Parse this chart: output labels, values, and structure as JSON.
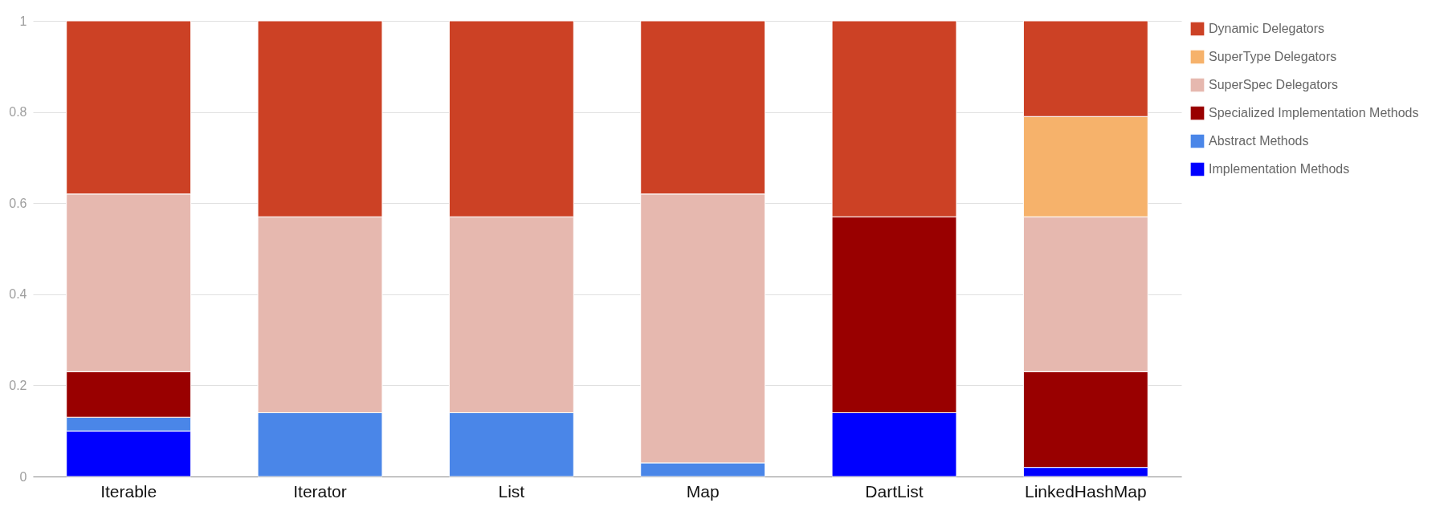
{
  "chart_data": {
    "type": "bar",
    "stacked": true,
    "categories": [
      "Iterable",
      "Iterator",
      "List",
      "Map",
      "DartList",
      "LinkedHashMap"
    ],
    "series": [
      {
        "name": "Implementation Methods",
        "color": "#0000ff",
        "values": [
          0.1,
          null,
          null,
          null,
          0.14,
          0.02
        ]
      },
      {
        "name": "Abstract Methods",
        "color": "#4a86e8",
        "values": [
          0.03,
          0.14,
          0.14,
          0.03,
          null,
          null
        ]
      },
      {
        "name": "Specialized Implementation Methods",
        "color": "#990000",
        "values": [
          0.1,
          null,
          null,
          null,
          0.43,
          0.21
        ]
      },
      {
        "name": "SuperSpec Delegators",
        "color": "#e6b8af",
        "values": [
          0.39,
          0.43,
          0.43,
          0.59,
          null,
          0.34
        ]
      },
      {
        "name": "SuperType Delegators",
        "color": "#f6b26b",
        "values": [
          null,
          null,
          null,
          null,
          null,
          0.22
        ]
      },
      {
        "name": "Dynamic Delegators",
        "color": "#cc4125",
        "values": [
          0.38,
          0.43,
          0.43,
          0.38,
          0.43,
          0.21
        ]
      }
    ],
    "ylim": [
      0,
      1
    ],
    "yticks": [
      0,
      0.2,
      0.4,
      0.6,
      0.8,
      1
    ],
    "grid": "y",
    "legend": "top right"
  }
}
